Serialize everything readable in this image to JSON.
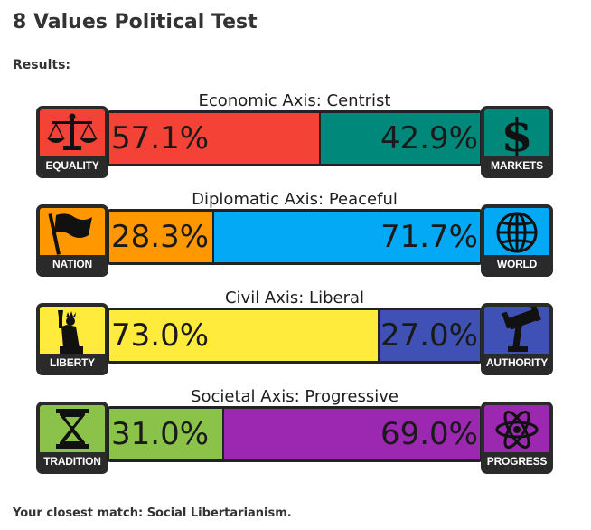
{
  "page": {
    "title": "8 Values Political Test",
    "results_label": "Results:",
    "closest_match": "Your closest match: Social Libertarianism."
  },
  "axes": [
    {
      "title": "Economic Axis: Centrist",
      "left": {
        "label": "EQUALITY",
        "value": 57.1,
        "text": "57.1%",
        "color": "#f44336",
        "icon": "scales-icon"
      },
      "right": {
        "label": "MARKETS",
        "value": 42.9,
        "text": "42.9%",
        "color": "#00897b",
        "icon": "dollar-icon"
      }
    },
    {
      "title": "Diplomatic Axis: Peaceful",
      "left": {
        "label": "NATION",
        "value": 28.3,
        "text": "28.3%",
        "color": "#ff9800",
        "icon": "flag-icon"
      },
      "right": {
        "label": "WORLD",
        "value": 71.7,
        "text": "71.7%",
        "color": "#03a9f4",
        "icon": "globe-icon"
      }
    },
    {
      "title": "Civil Axis: Liberal",
      "left": {
        "label": "LIBERTY",
        "value": 73.0,
        "text": "73.0%",
        "color": "#ffeb3b",
        "icon": "statue-of-liberty-icon"
      },
      "right": {
        "label": "AUTHORITY",
        "value": 27.0,
        "text": "27.0%",
        "color": "#3f51b5",
        "icon": "gavel-icon"
      }
    },
    {
      "title": "Societal Axis: Progressive",
      "left": {
        "label": "TRADITION",
        "value": 31.0,
        "text": "31.0%",
        "color": "#8bc34a",
        "icon": "hourglass-icon"
      },
      "right": {
        "label": "PROGRESS",
        "value": 69.0,
        "text": "69.0%",
        "color": "#9c27b0",
        "icon": "atom-icon"
      }
    }
  ]
}
